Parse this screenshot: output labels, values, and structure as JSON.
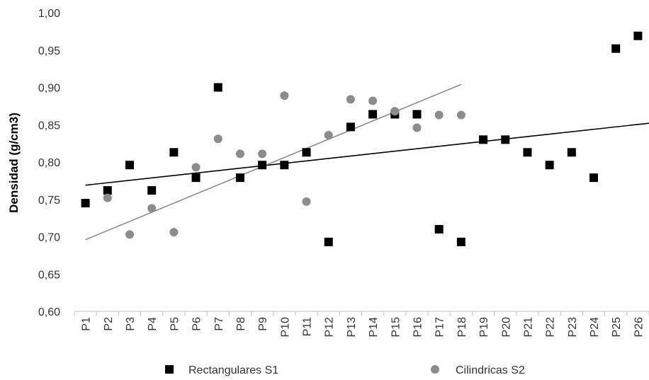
{
  "chart_data": {
    "type": "scatter",
    "title": "",
    "xlabel": "",
    "ylabel": "Densidad (g/cm3)",
    "ylim": [
      0.6,
      1.0
    ],
    "yticks": [
      "0,60",
      "0,65",
      "0,70",
      "0,75",
      "0,80",
      "0,85",
      "0,90",
      "0,95",
      "1,00"
    ],
    "categories": [
      "P1",
      "P2",
      "P3",
      "P4",
      "P5",
      "P6",
      "P7",
      "P8",
      "P9",
      "P10",
      "P11",
      "P12",
      "P13",
      "P14",
      "P15",
      "P16",
      "P17",
      "P18",
      "P19",
      "P20",
      "P21",
      "P22",
      "P23",
      "P24",
      "P25",
      "P26"
    ],
    "grid": false,
    "legend_position": "bottom",
    "series": [
      {
        "name": "Rectangulares S1",
        "marker": "square",
        "color": "#000000",
        "values": [
          0.745,
          0.762,
          0.796,
          0.762,
          0.813,
          0.779,
          0.9,
          0.779,
          0.796,
          0.796,
          0.813,
          0.693,
          0.847,
          0.864,
          0.864,
          0.864,
          0.71,
          0.693,
          0.83,
          0.83,
          0.813,
          0.796,
          0.813,
          0.779,
          0.952,
          0.969
        ],
        "trendline": {
          "color": "#000000",
          "from_index": 0,
          "to_index": 25,
          "start": 0.769,
          "end": 0.852
        }
      },
      {
        "name": "Cilindricas S2",
        "marker": "circle",
        "color": "#8c8c8c",
        "values": [
          null,
          0.752,
          0.703,
          0.738,
          0.706,
          0.793,
          0.831,
          0.811,
          0.811,
          0.889,
          0.747,
          0.836,
          0.884,
          0.882,
          0.868,
          0.846,
          0.863,
          0.863,
          null,
          null,
          null,
          null,
          null,
          null,
          null,
          null
        ],
        "trendline": {
          "color": "#8c8c8c",
          "from_index": 0,
          "to_index": 17,
          "start": 0.696,
          "end": 0.904
        }
      }
    ]
  }
}
